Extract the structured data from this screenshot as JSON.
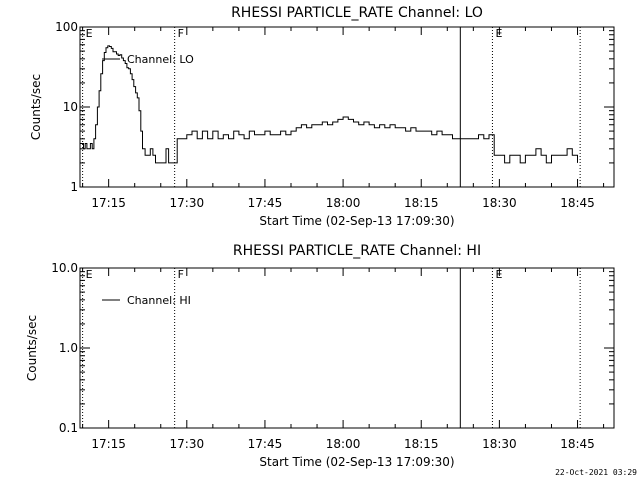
{
  "footer_timestamp": "22-Oct-2021 03:29",
  "chart_data": [
    {
      "type": "line",
      "title": "RHESSI PARTICLE_RATE Channel: LO",
      "xlabel": "Start Time (02-Sep-13 17:09:30)",
      "ylabel": "Counts/sec",
      "yscale": "log",
      "ylim": [
        1,
        100
      ],
      "xlim": [
        "17:09:30",
        "18:52:00"
      ],
      "x_ticks": [
        "17:15",
        "17:30",
        "17:45",
        "18:00",
        "18:15",
        "18:30",
        "18:45"
      ],
      "y_ticks": [
        {
          "value": 1,
          "label": "1"
        },
        {
          "value": 10,
          "label": "10"
        },
        {
          "value": 100,
          "label": "100"
        }
      ],
      "legend": {
        "position": "top-left",
        "entries": [
          "Channel: LO"
        ]
      },
      "markers": [
        {
          "time": "17:10:00",
          "label": "E",
          "style": "dotted"
        },
        {
          "time": "17:27:40",
          "label": "F",
          "style": "dotted"
        },
        {
          "time": "18:22:30",
          "label": "",
          "style": "solid"
        },
        {
          "time": "18:28:40",
          "label": "E",
          "style": "dotted"
        },
        {
          "time": "18:45:30",
          "label": "",
          "style": "dotted"
        }
      ],
      "series": [
        {
          "name": "Channel: LO",
          "points": [
            [
              "17:09:30",
              3.5
            ],
            [
              "17:09:50",
              3.5
            ],
            [
              "17:10:10",
              3.0
            ],
            [
              "17:10:30",
              3.5
            ],
            [
              "17:10:50",
              3.0
            ],
            [
              "17:11:10",
              3.0
            ],
            [
              "17:11:30",
              3.5
            ],
            [
              "17:11:50",
              3.0
            ],
            [
              "17:12:10",
              4.0
            ],
            [
              "17:12:30",
              6.0
            ],
            [
              "17:12:50",
              10.0
            ],
            [
              "17:13:10",
              16.0
            ],
            [
              "17:13:30",
              26.0
            ],
            [
              "17:13:50",
              38.0
            ],
            [
              "17:14:10",
              48.0
            ],
            [
              "17:14:30",
              55.0
            ],
            [
              "17:14:50",
              58.0
            ],
            [
              "17:15:10",
              57.0
            ],
            [
              "17:15:30",
              54.0
            ],
            [
              "17:15:50",
              49.0
            ],
            [
              "17:16:10",
              49.0
            ],
            [
              "17:16:30",
              46.0
            ],
            [
              "17:16:50",
              44.0
            ],
            [
              "17:17:10",
              45.0
            ],
            [
              "17:17:30",
              41.0
            ],
            [
              "17:17:50",
              38.0
            ],
            [
              "17:18:10",
              35.0
            ],
            [
              "17:18:30",
              31.0
            ],
            [
              "17:18:50",
              30.0
            ],
            [
              "17:19:10",
              26.0
            ],
            [
              "17:19:30",
              22.0
            ],
            [
              "17:19:50",
              18.0
            ],
            [
              "17:20:10",
              15.0
            ],
            [
              "17:20:30",
              13.0
            ],
            [
              "17:20:50",
              9.0
            ],
            [
              "17:21:10",
              5.0
            ],
            [
              "17:21:30",
              3.0
            ],
            [
              "17:22:00",
              2.5
            ],
            [
              "17:22:30",
              2.5
            ],
            [
              "17:23:00",
              3.0
            ],
            [
              "17:23:30",
              2.5
            ],
            [
              "17:24:00",
              2.0
            ],
            [
              "17:24:30",
              2.0
            ],
            [
              "17:25:00",
              2.0
            ],
            [
              "17:25:30",
              2.0
            ],
            [
              "17:26:00",
              3.0
            ],
            [
              "17:26:30",
              2.0
            ],
            [
              "17:27:00",
              2.0
            ],
            [
              "17:28:10",
              4.0
            ],
            [
              "17:29:00",
              4.0
            ],
            [
              "17:30:00",
              4.5
            ],
            [
              "17:31:00",
              5.0
            ],
            [
              "17:32:00",
              4.0
            ],
            [
              "17:33:00",
              5.0
            ],
            [
              "17:34:00",
              4.0
            ],
            [
              "17:35:00",
              5.0
            ],
            [
              "17:36:00",
              4.0
            ],
            [
              "17:37:00",
              4.5
            ],
            [
              "17:38:00",
              4.0
            ],
            [
              "17:39:00",
              5.0
            ],
            [
              "17:40:00",
              4.5
            ],
            [
              "17:41:00",
              4.0
            ],
            [
              "17:42:00",
              5.0
            ],
            [
              "17:43:00",
              4.5
            ],
            [
              "17:44:00",
              4.5
            ],
            [
              "17:45:00",
              5.0
            ],
            [
              "17:46:00",
              4.5
            ],
            [
              "17:47:00",
              4.5
            ],
            [
              "17:48:00",
              5.0
            ],
            [
              "17:49:00",
              4.5
            ],
            [
              "17:50:00",
              5.0
            ],
            [
              "17:51:00",
              5.5
            ],
            [
              "17:52:00",
              6.0
            ],
            [
              "17:53:00",
              5.5
            ],
            [
              "17:54:00",
              6.0
            ],
            [
              "17:55:00",
              6.0
            ],
            [
              "17:56:00",
              6.5
            ],
            [
              "17:57:00",
              6.0
            ],
            [
              "17:58:00",
              6.5
            ],
            [
              "17:59:00",
              7.0
            ],
            [
              "18:00:00",
              7.5
            ],
            [
              "18:01:00",
              7.0
            ],
            [
              "18:02:00",
              6.5
            ],
            [
              "18:03:00",
              6.0
            ],
            [
              "18:04:00",
              6.5
            ],
            [
              "18:05:00",
              6.0
            ],
            [
              "18:06:00",
              5.5
            ],
            [
              "18:07:00",
              6.0
            ],
            [
              "18:08:00",
              5.5
            ],
            [
              "18:09:00",
              6.0
            ],
            [
              "18:10:00",
              5.5
            ],
            [
              "18:11:00",
              5.5
            ],
            [
              "18:12:00",
              5.0
            ],
            [
              "18:13:00",
              5.5
            ],
            [
              "18:14:00",
              5.0
            ],
            [
              "18:15:00",
              5.0
            ],
            [
              "18:16:00",
              5.0
            ],
            [
              "18:17:00",
              4.5
            ],
            [
              "18:18:00",
              5.0
            ],
            [
              "18:19:00",
              4.5
            ],
            [
              "18:20:00",
              4.5
            ],
            [
              "18:21:00",
              4.0
            ],
            [
              "18:22:20",
              4.0
            ],
            [
              "18:23:00",
              4.0
            ],
            [
              "18:24:00",
              4.0
            ],
            [
              "18:25:00",
              4.0
            ],
            [
              "18:26:00",
              4.5
            ],
            [
              "18:27:00",
              4.0
            ],
            [
              "18:28:00",
              4.5
            ],
            [
              "18:29:00",
              2.5
            ],
            [
              "18:30:00",
              2.5
            ],
            [
              "18:31:00",
              2.0
            ],
            [
              "18:32:00",
              2.5
            ],
            [
              "18:33:00",
              2.5
            ],
            [
              "18:34:00",
              2.0
            ],
            [
              "18:35:00",
              2.5
            ],
            [
              "18:36:00",
              2.5
            ],
            [
              "18:37:00",
              3.0
            ],
            [
              "18:38:00",
              2.5
            ],
            [
              "18:39:00",
              2.0
            ],
            [
              "18:40:00",
              2.5
            ],
            [
              "18:41:00",
              2.5
            ],
            [
              "18:42:00",
              2.5
            ],
            [
              "18:43:00",
              3.0
            ],
            [
              "18:44:00",
              2.5
            ],
            [
              "18:45:00",
              2.0
            ]
          ]
        }
      ]
    },
    {
      "type": "line",
      "title": "RHESSI PARTICLE_RATE Channel: HI",
      "xlabel": "Start Time (02-Sep-13 17:09:30)",
      "ylabel": "Counts/sec",
      "yscale": "log",
      "ylim": [
        0.1,
        10
      ],
      "xlim": [
        "17:09:30",
        "18:52:00"
      ],
      "x_ticks": [
        "17:15",
        "17:30",
        "17:45",
        "18:00",
        "18:15",
        "18:30",
        "18:45"
      ],
      "y_ticks": [
        {
          "value": 0.1,
          "label": "0.1"
        },
        {
          "value": 1,
          "label": "1.0"
        },
        {
          "value": 10,
          "label": "10.0"
        }
      ],
      "legend": {
        "position": "top-left",
        "entries": [
          "Channel: HI"
        ]
      },
      "markers": [
        {
          "time": "17:10:00",
          "label": "E",
          "style": "dotted"
        },
        {
          "time": "17:27:40",
          "label": "F",
          "style": "dotted"
        },
        {
          "time": "18:22:30",
          "label": "",
          "style": "solid"
        },
        {
          "time": "18:28:40",
          "label": "E",
          "style": "dotted"
        },
        {
          "time": "18:45:30",
          "label": "",
          "style": "dotted"
        }
      ],
      "series": [
        {
          "name": "Channel: HI",
          "points": []
        }
      ]
    }
  ]
}
